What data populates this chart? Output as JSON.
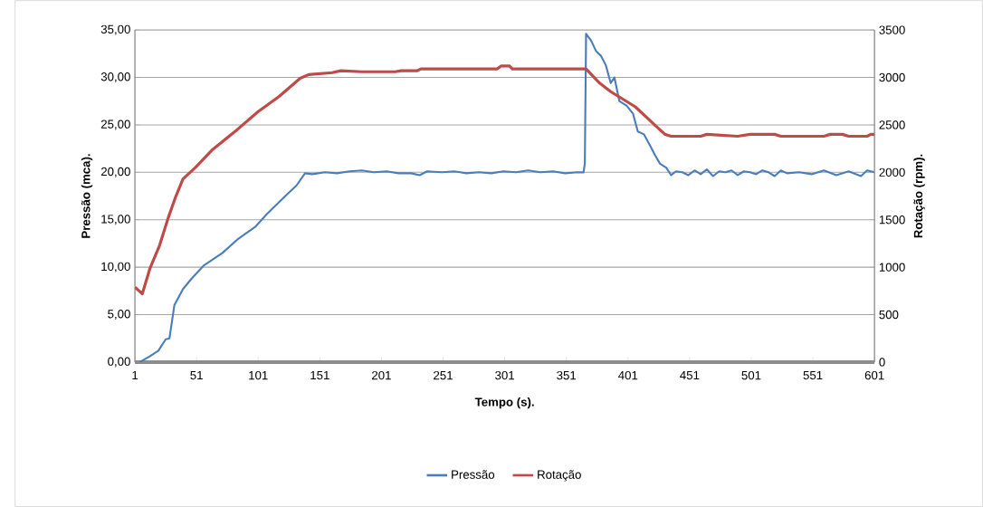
{
  "chart_data": {
    "type": "line",
    "xlabel": "Tempo (s).",
    "ylabel": "Pressão (mca).",
    "y2label": "Rotação (rpm).",
    "xlim": [
      1,
      601
    ],
    "xticks": [
      1,
      51,
      101,
      151,
      201,
      251,
      301,
      351,
      401,
      451,
      501,
      551,
      601
    ],
    "ylim": [
      0,
      35
    ],
    "yticks": [
      {
        "value": 0,
        "label": "0,00"
      },
      {
        "value": 5,
        "label": "5,00"
      },
      {
        "value": 10,
        "label": "10,00"
      },
      {
        "value": 15,
        "label": "15,00"
      },
      {
        "value": 20,
        "label": "20,00"
      },
      {
        "value": 25,
        "label": "25,00"
      },
      {
        "value": 30,
        "label": "30,00"
      },
      {
        "value": 35,
        "label": "35,00"
      }
    ],
    "y2lim": [
      0,
      3500
    ],
    "y2ticks": [
      0,
      500,
      1000,
      1500,
      2000,
      2500,
      3000,
      3500
    ],
    "grid": "y",
    "legend": "bottom",
    "series": [
      {
        "name": "Pressão",
        "color": "#4a7ebb",
        "x": [
          5,
          13,
          20,
          26,
          29,
          33,
          40,
          47,
          57,
          72,
          84,
          99,
          108,
          123,
          132,
          139,
          145,
          155,
          165,
          175,
          185,
          195,
          205,
          215,
          225,
          232,
          238,
          250,
          260,
          270,
          280,
          290,
          300,
          310,
          320,
          330,
          340,
          350,
          360,
          365,
          366,
          367,
          371,
          375,
          379,
          383,
          387,
          390,
          394,
          400,
          405,
          409,
          414,
          419,
          423,
          427,
          432,
          436,
          440,
          445,
          450,
          455,
          460,
          465,
          470,
          475,
          480,
          485,
          490,
          495,
          500,
          505,
          510,
          515,
          520,
          525,
          530,
          540,
          550,
          560,
          570,
          580,
          590,
          595,
          601
        ],
        "values": [
          0,
          0.6,
          1.2,
          2.4,
          2.5,
          6.0,
          7.7,
          8.8,
          10.2,
          11.5,
          12.9,
          14.3,
          15.6,
          17.5,
          18.6,
          19.9,
          19.8,
          20.0,
          19.9,
          20.1,
          20.2,
          20.0,
          20.1,
          19.9,
          19.9,
          19.7,
          20.1,
          20.0,
          20.1,
          19.9,
          20.0,
          19.9,
          20.1,
          20.0,
          20.2,
          20.0,
          20.1,
          19.9,
          20.0,
          20.0,
          21.0,
          34.6,
          33.9,
          32.8,
          32.3,
          31.3,
          29.4,
          30.0,
          27.5,
          27.0,
          26.2,
          24.3,
          24.0,
          22.8,
          21.8,
          20.9,
          20.5,
          19.7,
          20.1,
          20.0,
          19.7,
          20.2,
          19.8,
          20.3,
          19.6,
          20.1,
          20.0,
          20.2,
          19.7,
          20.1,
          20.0,
          19.8,
          20.2,
          20.0,
          19.6,
          20.2,
          19.9,
          20.0,
          19.8,
          20.2,
          19.7,
          20.1,
          19.6,
          20.2,
          20.0
        ]
      },
      {
        "name": "Rotação",
        "color": "#be4b48",
        "axis": "y2",
        "x": [
          1,
          7,
          13,
          21,
          28,
          34,
          40,
          50,
          64,
          84,
          101,
          118,
          135,
          142,
          161,
          168,
          185,
          212,
          217,
          230,
          233,
          295,
          298,
          305,
          307,
          365,
          367,
          378,
          387,
          407,
          421,
          431,
          436,
          460,
          465,
          490,
          500,
          520,
          525,
          560,
          565,
          575,
          580,
          595,
          598,
          601
        ],
        "values": [
          790,
          720,
          980,
          1230,
          1520,
          1740,
          1930,
          2050,
          2240,
          2450,
          2640,
          2800,
          2990,
          3030,
          3050,
          3070,
          3060,
          3060,
          3070,
          3070,
          3090,
          3090,
          3120,
          3120,
          3090,
          3090,
          3090,
          2940,
          2850,
          2690,
          2520,
          2400,
          2380,
          2380,
          2400,
          2380,
          2400,
          2400,
          2380,
          2380,
          2400,
          2400,
          2380,
          2380,
          2400,
          2400
        ]
      }
    ]
  }
}
